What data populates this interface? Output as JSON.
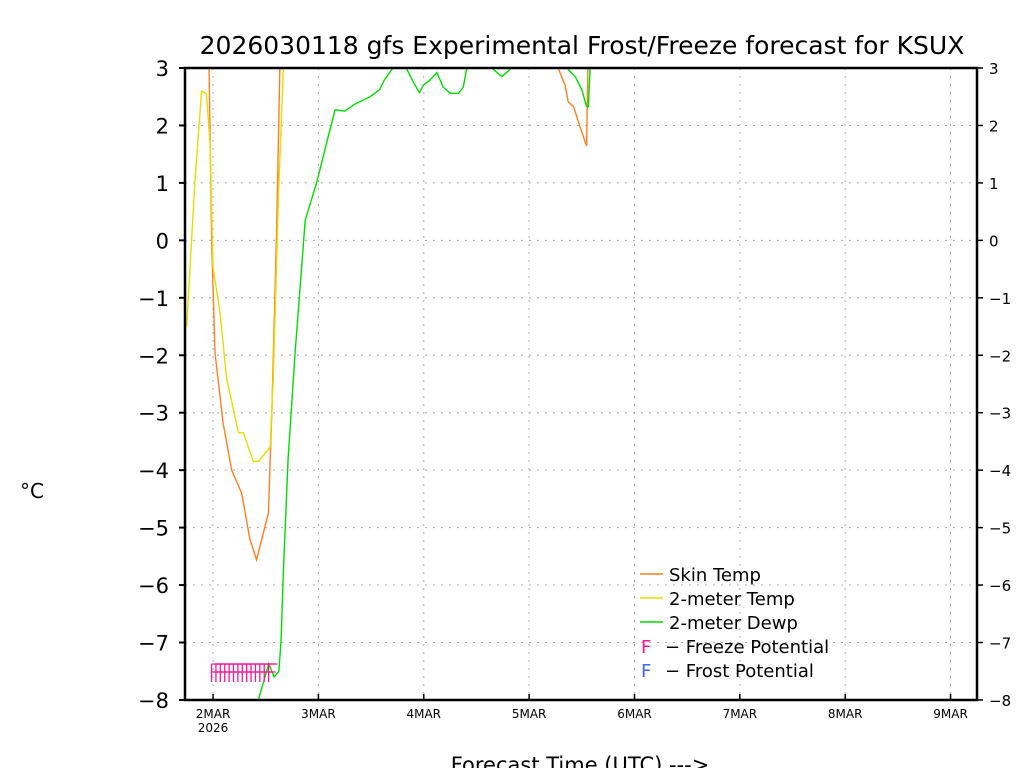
{
  "chart_data": {
    "type": "line",
    "title": "2026030118 gfs Experimental Frost/Freeze forecast for KSUX",
    "xlabel": "Forecast Time (UTC) --->",
    "ylabel": "°C",
    "xunit": "forecast hours from 2026030118",
    "xlim": [
      0,
      180
    ],
    "ylim": [
      -8,
      3
    ],
    "grid": true,
    "legend_position": "top-left",
    "yticks": [
      3,
      2,
      1,
      0,
      -1,
      -2,
      -3,
      -4,
      -5,
      -6,
      -7,
      -8
    ],
    "ytick_labels": [
      "3",
      "2",
      "1",
      "0",
      "−1",
      "−2",
      "−3",
      "−4",
      "−5",
      "−6",
      "−7",
      "−8"
    ],
    "xticks": [
      {
        "hour": 6,
        "label": "2MAR",
        "sublabel": "2026"
      },
      {
        "hour": 30,
        "label": "3MAR"
      },
      {
        "hour": 54,
        "label": "4MAR"
      },
      {
        "hour": 78,
        "label": "5MAR"
      },
      {
        "hour": 102,
        "label": "6MAR"
      },
      {
        "hour": 126,
        "label": "7MAR"
      },
      {
        "hour": 150,
        "label": "8MAR"
      },
      {
        "hour": 174,
        "label": "9MAR"
      }
    ],
    "series": [
      {
        "name": "Skin Temp",
        "color": "#ff7f1e",
        "points": [
          [
            0,
            3.5
          ],
          [
            5,
            3.5
          ],
          [
            5.7,
            -0.05
          ],
          [
            6.45,
            -1.96
          ],
          [
            8.3,
            -3.18
          ],
          [
            10.25,
            -4.0
          ],
          [
            12.5,
            -4.4
          ],
          [
            14.4,
            -5.2
          ],
          [
            15.9,
            -5.56
          ],
          [
            18.6,
            -4.75
          ],
          [
            19.4,
            -2.95
          ],
          [
            20.5,
            0.23
          ],
          [
            21.3,
            3.3
          ],
          [
            84,
            3.3
          ],
          [
            84.6,
            3
          ],
          [
            86.2,
            2.7
          ],
          [
            86.9,
            2.41
          ],
          [
            88.1,
            2.33
          ],
          [
            89.6,
            1.98
          ],
          [
            91.1,
            1.64
          ],
          [
            91.4,
            3
          ],
          [
            92,
            3.5
          ],
          [
            180,
            3.5
          ]
        ]
      },
      {
        "name": "2-meter Temp",
        "color": "#e6dc00",
        "points": [
          [
            0,
            -1.5
          ],
          [
            1.9,
            1.05
          ],
          [
            3.4,
            2.6
          ],
          [
            4.5,
            2.55
          ],
          [
            5.3,
            1.7
          ],
          [
            6,
            -0.46
          ],
          [
            7.6,
            -1.27
          ],
          [
            9.1,
            -2.4
          ],
          [
            11.8,
            -3.35
          ],
          [
            12.9,
            -3.35
          ],
          [
            15.2,
            -3.85
          ],
          [
            16.3,
            -3.85
          ],
          [
            19,
            -3.6
          ],
          [
            19.7,
            -2.43
          ],
          [
            20.9,
            0.8
          ],
          [
            22,
            2.97
          ],
          [
            22.5,
            3.5
          ],
          [
            180,
            3.5
          ]
        ]
      },
      {
        "name": "2-meter Dewp",
        "color": "#00dc00",
        "points": [
          [
            15,
            -8.5
          ],
          [
            16.3,
            -8
          ],
          [
            18.7,
            -7.37
          ],
          [
            19.9,
            -7.6
          ],
          [
            21,
            -7.5
          ],
          [
            21.5,
            -6.95
          ],
          [
            22,
            -5.8
          ],
          [
            23.1,
            -3.8
          ],
          [
            24.7,
            -1.96
          ],
          [
            27,
            0.35
          ],
          [
            29.6,
            1.0
          ],
          [
            32.2,
            1.8
          ],
          [
            33.8,
            2.27
          ],
          [
            36,
            2.25
          ],
          [
            38.3,
            2.37
          ],
          [
            41.8,
            2.5
          ],
          [
            43.9,
            2.62
          ],
          [
            45,
            2.79
          ],
          [
            47,
            3
          ],
          [
            48,
            3.3
          ],
          [
            49.5,
            3.3
          ],
          [
            50,
            3
          ],
          [
            51.6,
            2.76
          ],
          [
            53,
            2.57
          ],
          [
            53.9,
            2.7
          ],
          [
            55.4,
            2.79
          ],
          [
            57,
            2.92
          ],
          [
            58.4,
            2.67
          ],
          [
            60,
            2.56
          ],
          [
            61.9,
            2.56
          ],
          [
            63,
            2.67
          ],
          [
            63.8,
            3
          ],
          [
            64.5,
            3.3
          ],
          [
            69,
            3.3
          ],
          [
            69.5,
            3
          ],
          [
            71.8,
            2.85
          ],
          [
            74,
            3
          ],
          [
            74.5,
            3.3
          ],
          [
            86,
            3.3
          ],
          [
            86.6,
            3
          ],
          [
            88.5,
            2.85
          ],
          [
            90,
            2.62
          ],
          [
            91.1,
            2.33
          ],
          [
            91.5,
            2.33
          ],
          [
            91.9,
            3
          ],
          [
            92.5,
            3.5
          ],
          [
            180,
            3.5
          ]
        ]
      }
    ],
    "markers": [
      {
        "label": "F",
        "name": "Freeze Potential",
        "color": "#ff1493",
        "hours": [
          6,
          7,
          8,
          9,
          10,
          11,
          12,
          13,
          14,
          15,
          16,
          17,
          18,
          19
        ]
      },
      {
        "label": "F",
        "name": "Frost Potential",
        "color": "#3c64ff",
        "hours": []
      }
    ],
    "legend": {
      "skin": "Skin Temp",
      "t2m": "2-meter Temp",
      "dewp": "2-meter Dewp",
      "freeze_letter": "F",
      "freeze_text": "− Freeze Potential",
      "frost_letter": "F",
      "frost_text": "− Frost Potential"
    }
  }
}
